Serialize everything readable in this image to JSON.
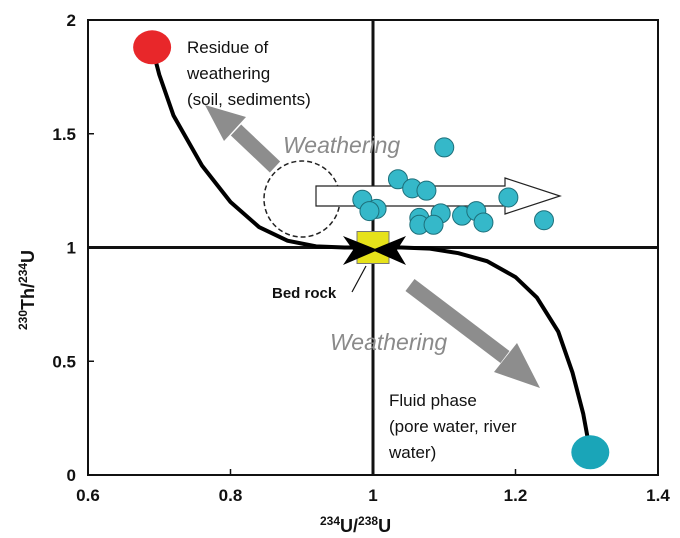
{
  "chart_data": {
    "type": "scatter",
    "xlabel": {
      "iso1": "234",
      "el1": "U/",
      "iso2": "238",
      "el2": "U"
    },
    "ylabel": {
      "iso1": "230",
      "el1": "Th/",
      "iso2": "234",
      "el2": "U"
    },
    "xlim": [
      0.6,
      1.4
    ],
    "ylim": [
      0,
      2
    ],
    "x_ticks": [
      "0.6",
      "0.8",
      "1",
      "1.2",
      "1.4"
    ],
    "y_ticks": [
      "0",
      "0.5",
      "1",
      "1.5",
      "2"
    ],
    "reference_lines": {
      "x": 1.0,
      "y": 1.0
    },
    "series": [
      {
        "color": "#35b8c9",
        "points": [
          {
            "x": 1.1,
            "y": 1.44
          },
          {
            "x": 1.035,
            "y": 1.3
          },
          {
            "x": 1.055,
            "y": 1.26
          },
          {
            "x": 1.075,
            "y": 1.25
          },
          {
            "x": 1.19,
            "y": 1.22
          },
          {
            "x": 0.985,
            "y": 1.21
          },
          {
            "x": 1.005,
            "y": 1.17
          },
          {
            "x": 0.995,
            "y": 1.16
          },
          {
            "x": 1.095,
            "y": 1.15
          },
          {
            "x": 1.125,
            "y": 1.14
          },
          {
            "x": 1.145,
            "y": 1.16
          },
          {
            "x": 1.065,
            "y": 1.13
          },
          {
            "x": 1.24,
            "y": 1.12
          },
          {
            "x": 1.065,
            "y": 1.1
          },
          {
            "x": 1.085,
            "y": 1.1
          },
          {
            "x": 1.155,
            "y": 1.11
          }
        ]
      }
    ],
    "end_members": [
      {
        "x": 0.69,
        "y": 1.88,
        "color": "#e8272a"
      },
      {
        "x": 1.305,
        "y": 0.1,
        "color": "#1aa5b8"
      }
    ],
    "bedrock": {
      "x": 1.0,
      "y": 1.0,
      "color": "#e6e21a"
    },
    "curve": [
      [
        0.69,
        1.88
      ],
      [
        0.7,
        1.76
      ],
      [
        0.72,
        1.58
      ],
      [
        0.76,
        1.36
      ],
      [
        0.8,
        1.2
      ],
      [
        0.84,
        1.09
      ],
      [
        0.88,
        1.03
      ],
      [
        0.92,
        1.005
      ],
      [
        0.96,
        1.0
      ],
      [
        1.0,
        1.0
      ],
      [
        1.04,
        1.0
      ],
      [
        1.08,
        0.995
      ],
      [
        1.12,
        0.975
      ],
      [
        1.16,
        0.94
      ],
      [
        1.2,
        0.87
      ],
      [
        1.23,
        0.78
      ],
      [
        1.26,
        0.63
      ],
      [
        1.28,
        0.45
      ],
      [
        1.295,
        0.27
      ],
      [
        1.305,
        0.1
      ]
    ],
    "annotations": {
      "residue": [
        "Residue of",
        "weathering",
        "(soil, sediments)"
      ],
      "fluid": [
        "Fluid phase",
        "(pore water, river",
        "water)"
      ],
      "weathering_top": "Weathering",
      "weathering_bottom": "Weathering",
      "bedrock": "Bed rock"
    },
    "colors": {
      "axis": "#111111",
      "grey_arrow": "#8d8d8d",
      "white_arrow_fill": "#ffffff",
      "curve": "#000000"
    }
  }
}
